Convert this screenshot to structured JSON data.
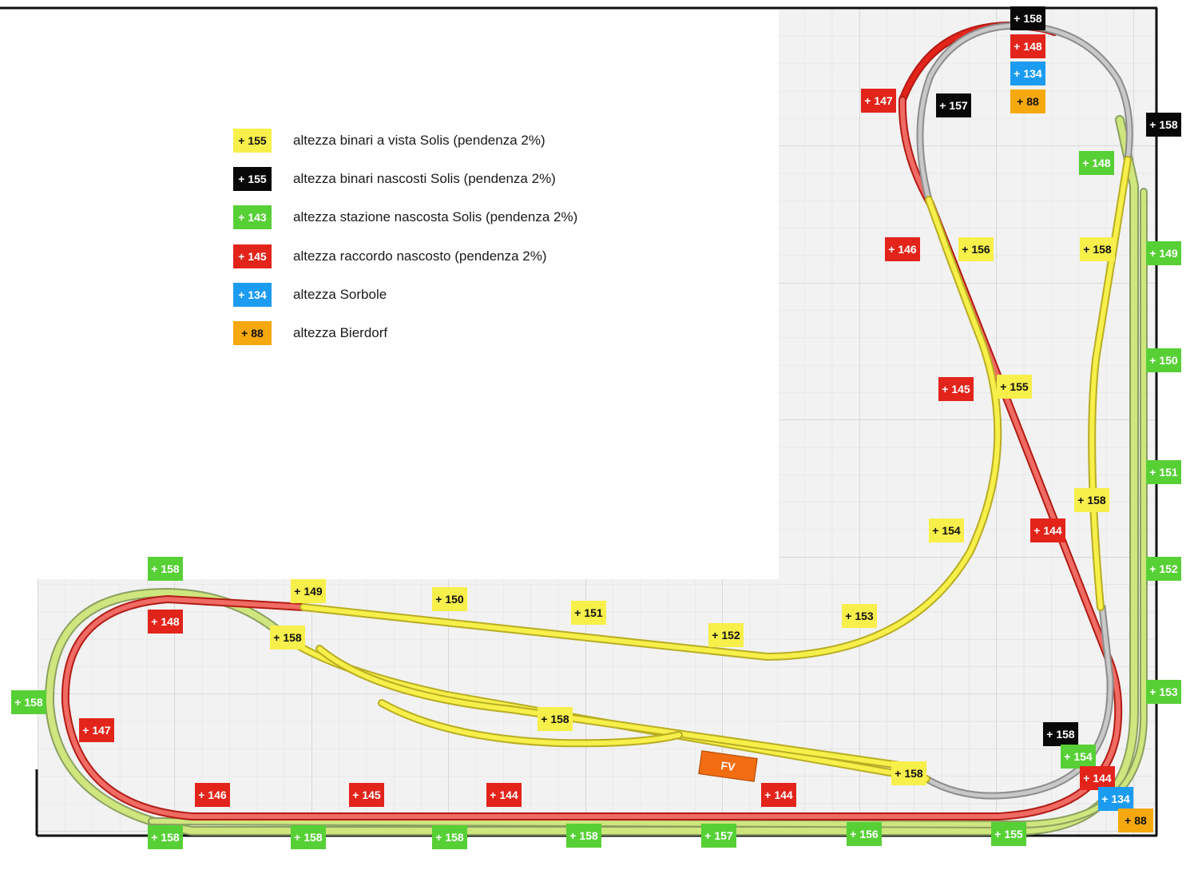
{
  "colors": {
    "yellow": "#f7ef4a",
    "black": "#080808",
    "green": "#57d036",
    "red": "#e3241b",
    "blue": "#1c9cf0",
    "orange": "#f6a80f"
  },
  "legend": [
    {
      "kind": "yellow",
      "value": "+ 155",
      "text": "altezza binari a vista Solis (pendenza 2%)"
    },
    {
      "kind": "black",
      "value": "+ 155",
      "text": "altezza binari nascosti Solis (pendenza 2%)"
    },
    {
      "kind": "green",
      "value": "+ 143",
      "text": "altezza stazione nascosta Solis (pendenza 2%)"
    },
    {
      "kind": "red",
      "value": "+ 145",
      "text": "altezza raccordo nascosto (pendenza 2%)"
    },
    {
      "kind": "blue",
      "value": "+ 134",
      "text": "altezza Sorbole"
    },
    {
      "kind": "orange",
      "value": "+  88",
      "text": "altezza Bierdorf"
    }
  ],
  "markers": [
    {
      "kind": "black",
      "value": "+ 158"
    },
    {
      "kind": "red",
      "value": "+ 148"
    },
    {
      "kind": "blue",
      "value": "+ 134"
    },
    {
      "kind": "orange",
      "value": "+  88"
    },
    {
      "kind": "red",
      "value": "+ 147"
    },
    {
      "kind": "black",
      "value": "+ 157"
    },
    {
      "kind": "black",
      "value": "+ 158"
    },
    {
      "kind": "green",
      "value": "+ 148"
    },
    {
      "kind": "red",
      "value": "+ 146"
    },
    {
      "kind": "yellow",
      "value": "+ 156"
    },
    {
      "kind": "yellow",
      "value": "+ 158"
    },
    {
      "kind": "green",
      "value": "+ 149"
    },
    {
      "kind": "green",
      "value": "+ 150"
    },
    {
      "kind": "red",
      "value": "+ 145"
    },
    {
      "kind": "yellow",
      "value": "+ 155"
    },
    {
      "kind": "green",
      "value": "+ 151"
    },
    {
      "kind": "yellow",
      "value": "+ 158"
    },
    {
      "kind": "yellow",
      "value": "+ 154"
    },
    {
      "kind": "red",
      "value": "+ 144"
    },
    {
      "kind": "green",
      "value": "+ 152"
    },
    {
      "kind": "green",
      "value": "+ 158"
    },
    {
      "kind": "yellow",
      "value": "+ 149"
    },
    {
      "kind": "yellow",
      "value": "+ 150"
    },
    {
      "kind": "yellow",
      "value": "+ 151"
    },
    {
      "kind": "yellow",
      "value": "+ 153"
    },
    {
      "kind": "red",
      "value": "+ 148"
    },
    {
      "kind": "yellow",
      "value": "+ 158"
    },
    {
      "kind": "yellow",
      "value": "+ 152"
    },
    {
      "kind": "green",
      "value": "+ 158"
    },
    {
      "kind": "green",
      "value": "+ 153"
    },
    {
      "kind": "red",
      "value": "+ 147"
    },
    {
      "kind": "yellow",
      "value": "+ 158"
    },
    {
      "kind": "black",
      "value": "+ 158"
    },
    {
      "kind": "green",
      "value": "+ 154"
    },
    {
      "kind": "yellow",
      "value": "+ 158"
    },
    {
      "kind": "red",
      "value": "+ 144"
    },
    {
      "kind": "blue",
      "value": "+ 134"
    },
    {
      "kind": "red",
      "value": "+ 146"
    },
    {
      "kind": "red",
      "value": "+ 145"
    },
    {
      "kind": "red",
      "value": "+ 144"
    },
    {
      "kind": "red",
      "value": "+ 144"
    },
    {
      "kind": "orange",
      "value": "+  88"
    },
    {
      "kind": "green",
      "value": "+ 158"
    },
    {
      "kind": "green",
      "value": "+ 158"
    },
    {
      "kind": "green",
      "value": "+ 158"
    },
    {
      "kind": "green",
      "value": "+ 158"
    },
    {
      "kind": "green",
      "value": "+ 157"
    },
    {
      "kind": "green",
      "value": "+ 156"
    },
    {
      "kind": "green",
      "value": "+ 155"
    }
  ],
  "station_label": "FV"
}
